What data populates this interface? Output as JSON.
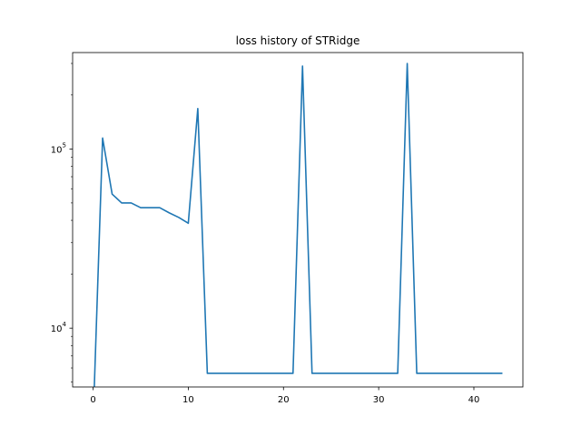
{
  "chart_data": {
    "type": "line",
    "title": "loss history of STRidge",
    "xlabel": "",
    "ylabel": "",
    "xlim": [
      -2.15,
      45.15
    ],
    "ylim": [
      4700,
      345000
    ],
    "yscale": "log",
    "grid": false,
    "x_ticks": [
      0,
      10,
      20,
      30,
      40
    ],
    "x_tick_labels": [
      "0",
      "10",
      "20",
      "30",
      "40"
    ],
    "y_ticks": [
      10000,
      100000
    ],
    "y_tick_labels": [
      {
        "base": "10",
        "exp": "4"
      },
      {
        "base": "10",
        "exp": "5"
      }
    ],
    "y_minor_ticks": [
      5000,
      6000,
      7000,
      8000,
      9000,
      20000,
      30000,
      40000,
      50000,
      60000,
      70000,
      80000,
      90000,
      200000,
      300000
    ],
    "series": [
      {
        "color": "#1f77b4",
        "x": [
          0,
          1,
          2,
          3,
          4,
          5,
          6,
          7,
          8,
          9,
          10,
          11,
          12,
          13,
          14,
          15,
          16,
          17,
          18,
          19,
          20,
          21,
          22,
          23,
          24,
          25,
          26,
          27,
          28,
          29,
          30,
          31,
          32,
          33,
          34,
          35,
          36,
          37,
          38,
          39,
          40,
          41,
          42,
          43
        ],
        "y": [
          0,
          115000,
          56000,
          50000,
          50000,
          47000,
          47000,
          47000,
          44000,
          41500,
          38500,
          168000,
          5600,
          5600,
          5600,
          5600,
          5600,
          5600,
          5600,
          5600,
          5600,
          5600,
          290000,
          5600,
          5600,
          5600,
          5600,
          5600,
          5600,
          5600,
          5600,
          5600,
          5600,
          300000,
          5600,
          5600,
          5600,
          5600,
          5600,
          5600,
          5600,
          5600,
          5600,
          5600
        ]
      }
    ]
  }
}
